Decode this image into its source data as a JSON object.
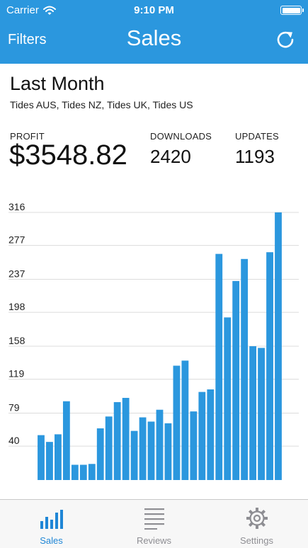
{
  "status_bar": {
    "carrier": "Carrier",
    "time": "9:10 PM"
  },
  "nav": {
    "filters_label": "Filters",
    "title": "Sales"
  },
  "summary": {
    "period": "Last Month",
    "stores": "Tides AUS, Tides NZ, Tides UK, Tides US",
    "profit_label": "PROFIT",
    "profit_value": "$3548.82",
    "downloads_label": "DOWNLOADS",
    "downloads_value": "2420",
    "updates_label": "UPDATES",
    "updates_value": "1193"
  },
  "tabs": [
    {
      "label": "Sales",
      "icon": "bar-chart-icon",
      "active": true
    },
    {
      "label": "Reviews",
      "icon": "list-lines-icon",
      "active": false
    },
    {
      "label": "Settings",
      "icon": "gear-icon",
      "active": false
    }
  ],
  "colors": {
    "header": "#2b97de",
    "bar": "#2b97de",
    "active_tab": "#1f86d6",
    "inactive_tab": "#8e8e93"
  },
  "chart_data": {
    "type": "bar",
    "yticks": [
      40,
      79,
      119,
      158,
      198,
      237,
      277,
      316
    ],
    "ylim": [
      0,
      316
    ],
    "grid": true,
    "values": [
      53,
      45,
      54,
      93,
      18,
      18,
      19,
      61,
      75,
      92,
      97,
      58,
      74,
      69,
      83,
      67,
      135,
      141,
      81,
      104,
      107,
      267,
      192,
      235,
      261,
      158,
      156,
      269,
      316
    ]
  }
}
